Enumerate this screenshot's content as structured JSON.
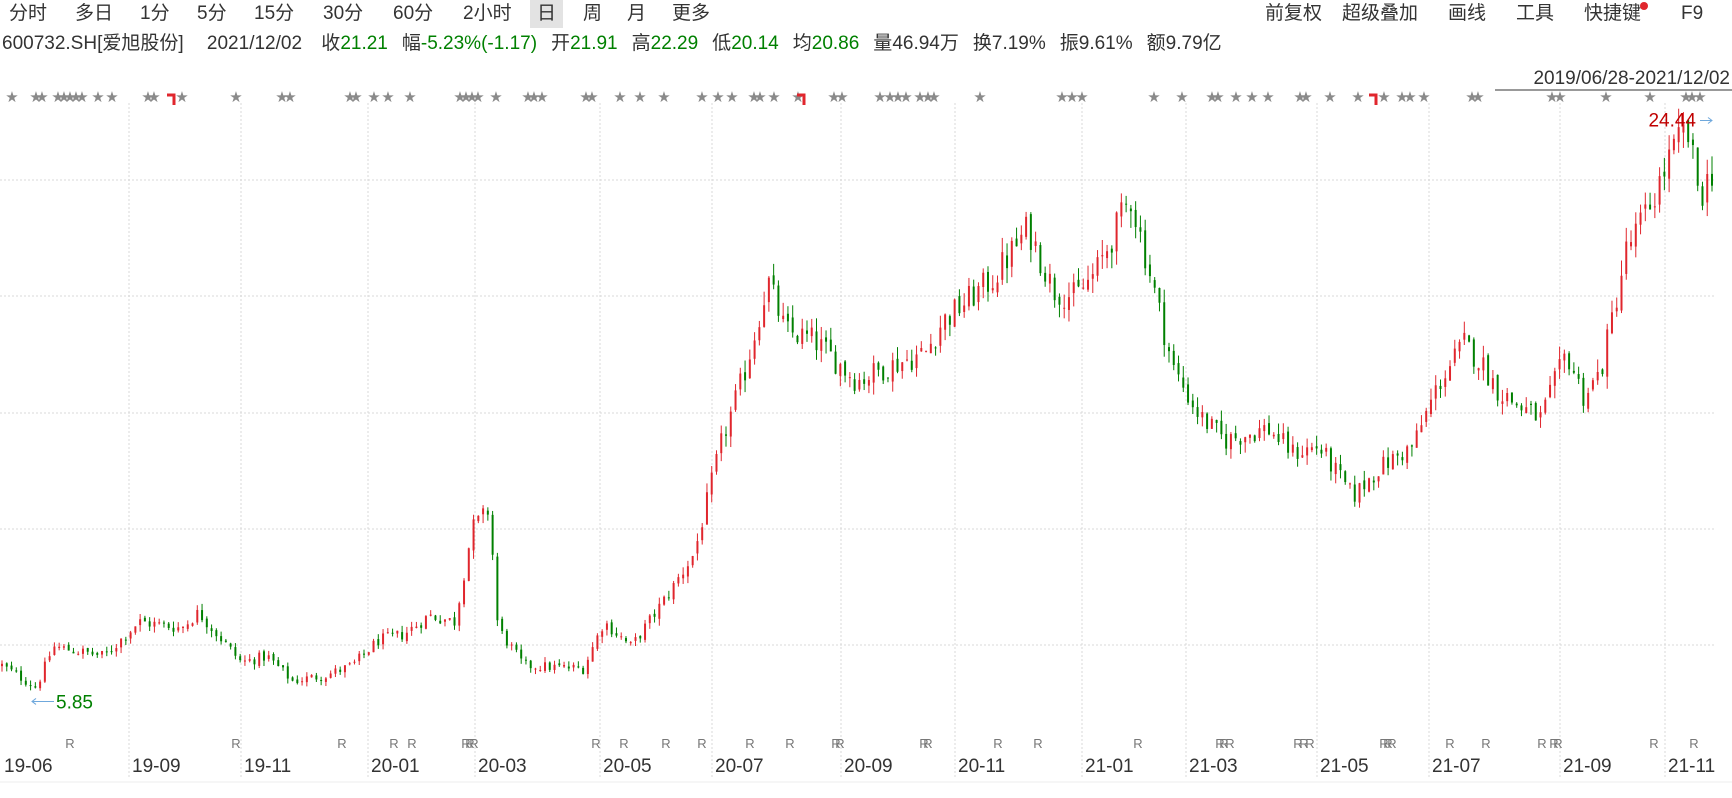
{
  "toolbar": {
    "periods": [
      {
        "label": "分时",
        "active": false
      },
      {
        "label": "多日",
        "active": false
      },
      {
        "label": "1分",
        "active": false
      },
      {
        "label": "5分",
        "active": false
      },
      {
        "label": "15分",
        "active": false
      },
      {
        "label": "30分",
        "active": false
      },
      {
        "label": "60分",
        "active": false
      },
      {
        "label": "2小时",
        "active": false
      },
      {
        "label": "日",
        "active": true
      },
      {
        "label": "周",
        "active": false
      },
      {
        "label": "月",
        "active": false
      },
      {
        "label": "更多",
        "active": false
      }
    ],
    "right_items": [
      {
        "label": "前复权",
        "dot": false
      },
      {
        "label": "超级叠加",
        "dot": false
      },
      {
        "label": "画线",
        "dot": false
      },
      {
        "label": "工具",
        "dot": false
      },
      {
        "label": "快捷键",
        "dot": true
      },
      {
        "label": "F9",
        "dot": false
      }
    ]
  },
  "quote": {
    "code": "600732.SH[爱旭股份]",
    "date": "2021/12/02",
    "fields": [
      {
        "label": "收",
        "value": "21.21"
      },
      {
        "label": "幅",
        "value": "-5.23%(-1.17)"
      },
      {
        "label": "开",
        "value": "21.91"
      },
      {
        "label": "高",
        "value": "22.29"
      },
      {
        "label": "低",
        "value": "20.14"
      },
      {
        "label": "均",
        "value": "20.86"
      },
      {
        "label": "量",
        "value": "46.94万",
        "plain": true
      },
      {
        "label": "换",
        "value": "7.19%",
        "plain": true
      },
      {
        "label": "振",
        "value": "9.61%",
        "plain": true
      },
      {
        "label": "额",
        "value": "9.79亿",
        "plain": true
      }
    ]
  },
  "chart_data": {
    "type": "candlestick",
    "range_label": "2019/06/28-2021/12/02",
    "x_tick_labels": [
      "19-06",
      "19-09",
      "19-11",
      "20-01",
      "20-03",
      "20-05",
      "20-07",
      "20-09",
      "20-11",
      "21-01",
      "21-03",
      "21-05",
      "21-07",
      "21-09",
      "21-11"
    ],
    "high_marker": "24.44",
    "low_marker": "5.85",
    "y_range": [
      5.0,
      25.0
    ],
    "up_color": "#e0262d",
    "down_color": "#008000",
    "price_path": [
      [
        0,
        7.0
      ],
      [
        0.02,
        6.3
      ],
      [
        0.03,
        7.6
      ],
      [
        0.06,
        7.3
      ],
      [
        0.08,
        8.4
      ],
      [
        0.105,
        8.2
      ],
      [
        0.115,
        8.7
      ],
      [
        0.14,
        7.1
      ],
      [
        0.155,
        7.3
      ],
      [
        0.17,
        6.5
      ],
      [
        0.19,
        6.7
      ],
      [
        0.205,
        7.0
      ],
      [
        0.22,
        7.8
      ],
      [
        0.235,
        8.0
      ],
      [
        0.25,
        8.6
      ],
      [
        0.265,
        8.4
      ],
      [
        0.275,
        11.4
      ],
      [
        0.285,
        12.0
      ],
      [
        0.29,
        8.2
      ],
      [
        0.305,
        7.0
      ],
      [
        0.34,
        6.9
      ],
      [
        0.352,
        8.4
      ],
      [
        0.368,
        7.6
      ],
      [
        0.39,
        9.3
      ],
      [
        0.405,
        10.6
      ],
      [
        0.42,
        14.0
      ],
      [
        0.435,
        16.5
      ],
      [
        0.448,
        19.3
      ],
      [
        0.458,
        17.7
      ],
      [
        0.475,
        17.4
      ],
      [
        0.5,
        16.1
      ],
      [
        0.515,
        16.5
      ],
      [
        0.54,
        17.0
      ],
      [
        0.55,
        18.0
      ],
      [
        0.565,
        18.7
      ],
      [
        0.58,
        19.4
      ],
      [
        0.6,
        21.0
      ],
      [
        0.615,
        19.0
      ],
      [
        0.628,
        18.8
      ],
      [
        0.64,
        19.6
      ],
      [
        0.66,
        22.0
      ],
      [
        0.672,
        19.4
      ],
      [
        0.685,
        16.5
      ],
      [
        0.7,
        15.0
      ],
      [
        0.715,
        14.2
      ],
      [
        0.74,
        14.6
      ],
      [
        0.755,
        13.8
      ],
      [
        0.77,
        14.0
      ],
      [
        0.79,
        12.4
      ],
      [
        0.805,
        13.3
      ],
      [
        0.825,
        14.0
      ],
      [
        0.84,
        16.0
      ],
      [
        0.855,
        17.3
      ],
      [
        0.865,
        16.7
      ],
      [
        0.875,
        15.8
      ],
      [
        0.887,
        15.3
      ],
      [
        0.9,
        14.9
      ],
      [
        0.915,
        17.0
      ],
      [
        0.925,
        15.6
      ],
      [
        0.935,
        16.4
      ],
      [
        0.95,
        20.3
      ],
      [
        0.962,
        21.5
      ],
      [
        0.975,
        23.2
      ],
      [
        0.985,
        24.2
      ],
      [
        0.993,
        22.0
      ],
      [
        1.0,
        22.8
      ]
    ],
    "star_markers": [
      "★"
    ],
    "r_markers": [
      "R"
    ]
  }
}
